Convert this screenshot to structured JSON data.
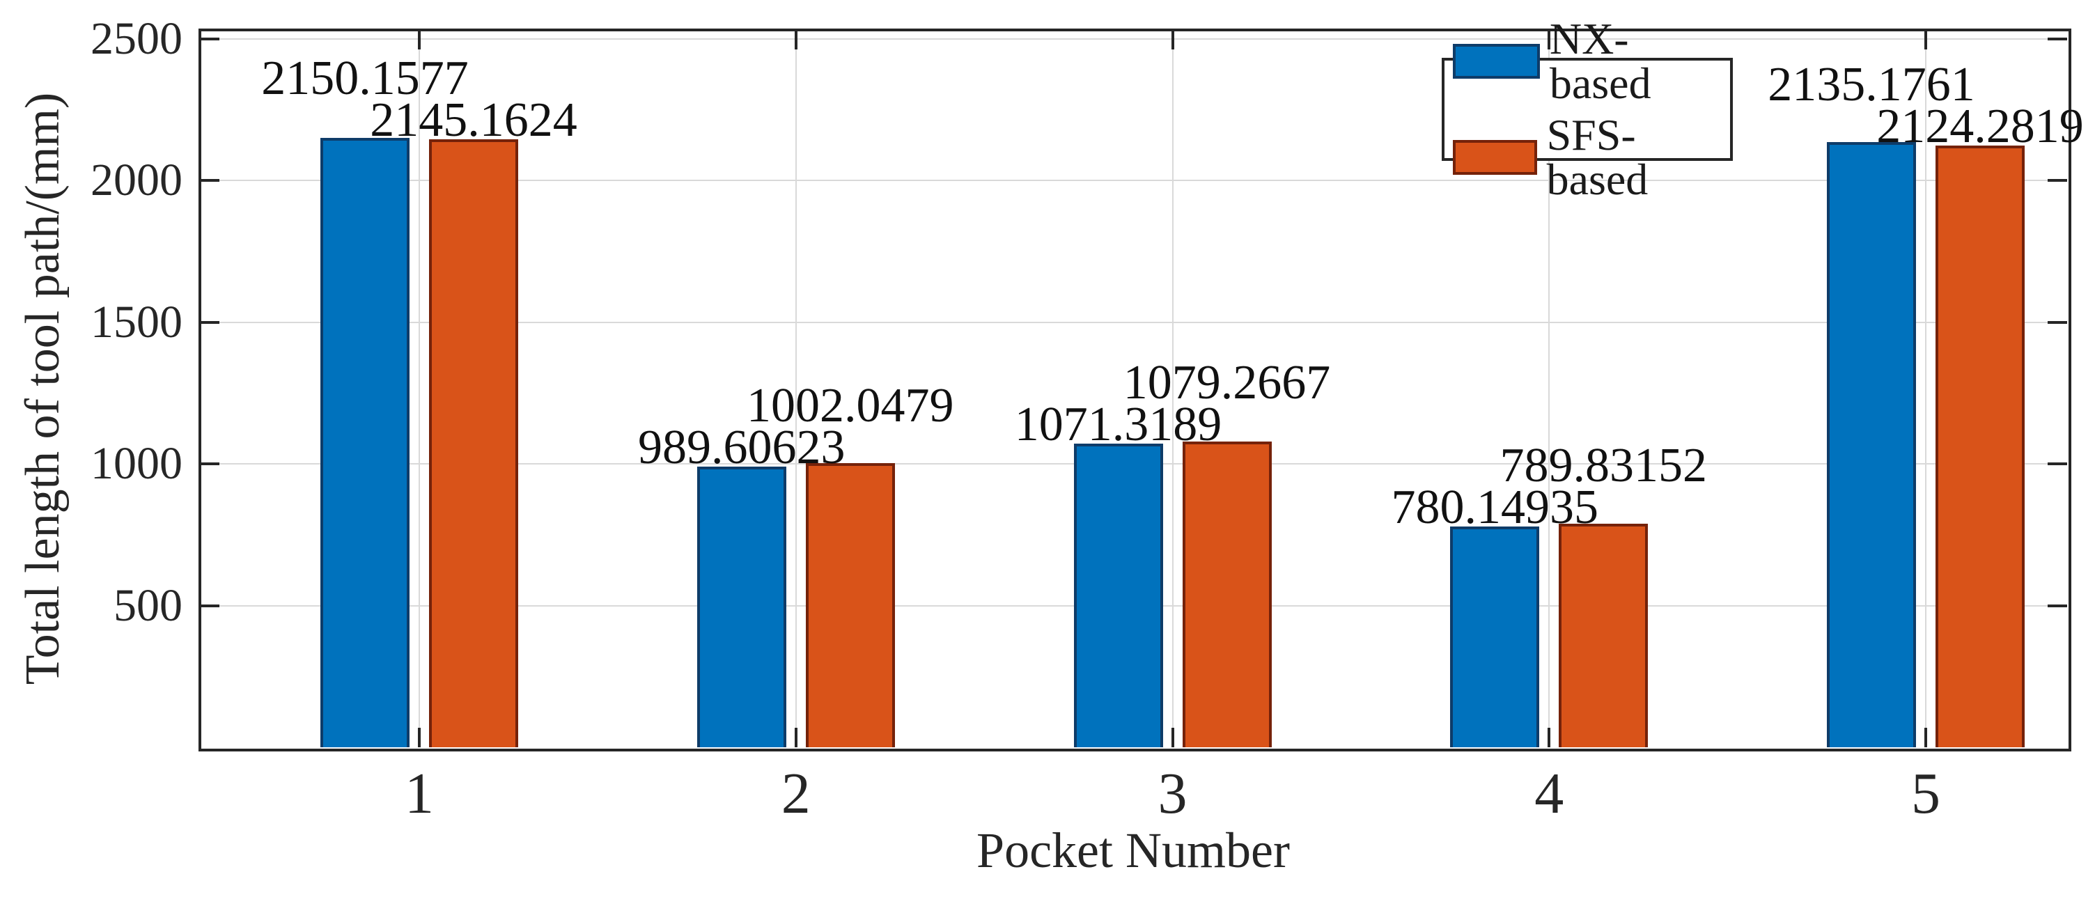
{
  "chart_data": {
    "type": "bar",
    "title": "",
    "xlabel": "Pocket Number",
    "ylabel": "Total length of tool path/(mm)",
    "categories": [
      "1",
      "2",
      "3",
      "4",
      "5"
    ],
    "series": [
      {
        "name": "NX-based",
        "color": "#0072BD",
        "edge_color": "#0e3c69",
        "values": [
          2150.1577,
          989.60623,
          1071.3189,
          780.14935,
          2135.1761
        ],
        "value_labels": [
          "2150.1577",
          "989.60623",
          "1071.3189",
          "780.14935",
          "2135.1761"
        ]
      },
      {
        "name": "SFS-based",
        "color": "#D95319",
        "edge_color": "#75220a",
        "values": [
          2145.1624,
          1002.0479,
          1079.2667,
          789.83152,
          2124.2819
        ],
        "value_labels": [
          "2145.1624",
          "1002.0479",
          "1079.2667",
          "789.83152",
          "2124.2819"
        ]
      }
    ],
    "yticks": [
      500,
      1000,
      1500,
      2000,
      2500
    ],
    "ytick_labels": [
      "500",
      "1000",
      "1500",
      "2000",
      "2500"
    ],
    "ylim": [
      0,
      2532
    ],
    "grid": true,
    "legend_position": "top-right",
    "axis_color": "#262626",
    "grid_color": "#d9d9d9",
    "text_color": "#111111"
  }
}
